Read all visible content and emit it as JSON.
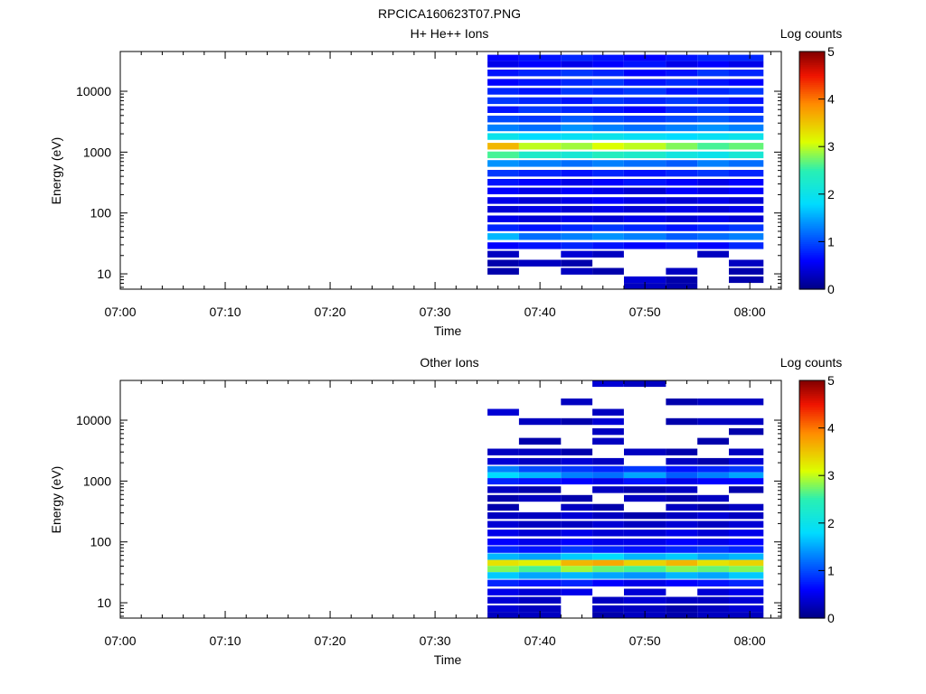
{
  "figure_title": "RPCICA160623T07.PNG",
  "chart_data": [
    {
      "type": "heatmap",
      "title": "H+ He++ Ions",
      "xlabel": "Time",
      "ylabel": "Energy (eV)",
      "colorbar_label": "Log counts",
      "colorbar_ticks": [
        "0",
        "1",
        "2",
        "3",
        "4",
        "5"
      ],
      "colorbar_range": [
        0,
        5
      ],
      "y_scale": "log",
      "y_range": [
        5.6,
        45000
      ],
      "y_ticks": [
        "10",
        "100",
        "1000",
        "10000"
      ],
      "x_ticks": [
        "07:00",
        "07:10",
        "07:20",
        "07:30",
        "07:40",
        "07:50",
        "08:00"
      ],
      "x_range_minutes": [
        0,
        63
      ],
      "time_columns": [
        "07:35",
        "07:38",
        "07:42",
        "07:45",
        "07:48",
        "07:52",
        "07:55",
        "07:58"
      ],
      "bands": [
        {
          "e": 35000,
          "v": [
            0.6,
            0.7,
            0.8,
            0.7,
            0.6,
            0.7,
            0.8,
            0.8
          ]
        },
        {
          "e": 28000,
          "v": [
            0.5,
            0.6,
            0.5,
            0.6,
            0.7,
            0.5,
            0.6,
            0.5
          ]
        },
        {
          "e": 20000,
          "v": [
            0.7,
            0.8,
            0.9,
            0.8,
            0.6,
            0.7,
            0.9,
            0.8
          ]
        },
        {
          "e": 14000,
          "v": [
            0.6,
            0.7,
            0.8,
            0.9,
            0.7,
            0.8,
            0.7,
            0.6
          ]
        },
        {
          "e": 10000,
          "v": [
            0.8,
            0.7,
            0.9,
            0.8,
            0.9,
            0.7,
            0.8,
            0.9
          ]
        },
        {
          "e": 7000,
          "v": [
            0.9,
            0.8,
            0.7,
            0.9,
            0.8,
            0.9,
            0.8,
            0.7
          ]
        },
        {
          "e": 5000,
          "v": [
            0.7,
            0.9,
            0.8,
            0.7,
            0.6,
            0.8,
            0.9,
            0.8
          ]
        },
        {
          "e": 3500,
          "v": [
            1.0,
            0.9,
            1.1,
            1.0,
            0.9,
            1.0,
            1.1,
            1.0
          ]
        },
        {
          "e": 2500,
          "v": [
            1.3,
            1.2,
            1.4,
            1.3,
            1.2,
            1.3,
            1.4,
            1.3
          ]
        },
        {
          "e": 1800,
          "v": [
            2.0,
            1.8,
            1.9,
            2.0,
            1.9,
            1.8,
            1.9,
            2.0
          ]
        },
        {
          "e": 1250,
          "v": [
            3.6,
            3.0,
            2.9,
            3.1,
            3.0,
            2.8,
            2.6,
            2.7
          ]
        },
        {
          "e": 900,
          "v": [
            2.6,
            2.3,
            2.2,
            2.4,
            2.3,
            2.1,
            2.0,
            2.2
          ]
        },
        {
          "e": 650,
          "v": [
            1.4,
            1.3,
            1.2,
            1.3,
            1.2,
            1.1,
            1.3,
            1.2
          ]
        },
        {
          "e": 450,
          "v": [
            0.9,
            0.8,
            0.7,
            0.8,
            0.7,
            0.8,
            0.9,
            0.8
          ]
        },
        {
          "e": 320,
          "v": [
            0.7,
            0.6,
            0.5,
            0.6,
            0.7,
            0.6,
            0.5,
            0.6
          ]
        },
        {
          "e": 230,
          "v": [
            0.6,
            0.5,
            0.6,
            0.5,
            0.4,
            0.6,
            0.5,
            0.6
          ]
        },
        {
          "e": 160,
          "v": [
            0.5,
            0.4,
            0.5,
            0.6,
            0.5,
            0.4,
            0.5,
            0.4
          ]
        },
        {
          "e": 115,
          "v": [
            0.4,
            0.5,
            0.4,
            0.5,
            0.4,
            0.5,
            0.4,
            0.5
          ]
        },
        {
          "e": 80,
          "v": [
            0.5,
            0.4,
            0.5,
            0.4,
            0.5,
            0.4,
            0.5,
            0.4
          ]
        },
        {
          "e": 57,
          "v": [
            0.8,
            0.7,
            0.8,
            0.9,
            0.8,
            0.7,
            0.8,
            0.9
          ]
        },
        {
          "e": 41,
          "v": [
            1.6,
            1.2,
            1.3,
            1.4,
            1.3,
            1.1,
            1.2,
            1.3
          ]
        },
        {
          "e": 29,
          "v": [
            0.6,
            0.7,
            0.8,
            0.7,
            0.6,
            0.7,
            0.6,
            0.8
          ]
        },
        {
          "e": 21,
          "v": [
            0.3,
            null,
            0.4,
            0.3,
            null,
            null,
            0.3,
            null
          ]
        },
        {
          "e": 15,
          "v": [
            0.2,
            0.3,
            0.2,
            null,
            null,
            null,
            null,
            0.3
          ]
        },
        {
          "e": 11,
          "v": [
            0.2,
            null,
            0.3,
            0.2,
            null,
            0.3,
            null,
            0.2
          ]
        },
        {
          "e": 8,
          "v": [
            null,
            null,
            null,
            null,
            0.4,
            0.2,
            null,
            0.2
          ]
        },
        {
          "e": 6.3,
          "v": [
            null,
            null,
            null,
            null,
            0.3,
            0.2,
            null,
            null
          ]
        }
      ]
    },
    {
      "type": "heatmap",
      "title": "Other Ions",
      "xlabel": "Time",
      "ylabel": "Energy (eV)",
      "colorbar_label": "Log counts",
      "colorbar_ticks": [
        "0",
        "1",
        "2",
        "3",
        "4",
        "5"
      ],
      "colorbar_range": [
        0,
        5
      ],
      "y_scale": "log",
      "y_range": [
        5.6,
        45000
      ],
      "y_ticks": [
        "10",
        "100",
        "1000",
        "10000"
      ],
      "x_ticks": [
        "07:00",
        "07:10",
        "07:20",
        "07:30",
        "07:40",
        "07:50",
        "08:00"
      ],
      "x_range_minutes": [
        0,
        63
      ],
      "time_columns": [
        "07:35",
        "07:38",
        "07:42",
        "07:45",
        "07:48",
        "07:52",
        "07:55",
        "07:58"
      ],
      "bands": [
        {
          "e": 40000,
          "v": [
            null,
            null,
            null,
            0.4,
            0.3,
            null,
            null,
            null
          ]
        },
        {
          "e": 20000,
          "v": [
            null,
            null,
            0.3,
            null,
            null,
            0.2,
            0.3,
            0.3
          ]
        },
        {
          "e": 13500,
          "v": [
            0.4,
            null,
            null,
            0.3,
            null,
            null,
            null,
            null
          ]
        },
        {
          "e": 9500,
          "v": [
            null,
            0.3,
            0.2,
            0.4,
            null,
            0.2,
            0.3,
            0.3
          ]
        },
        {
          "e": 6500,
          "v": [
            null,
            null,
            null,
            0.3,
            null,
            null,
            null,
            0.2
          ]
        },
        {
          "e": 4500,
          "v": [
            null,
            0.2,
            null,
            0.3,
            null,
            null,
            0.2,
            null
          ]
        },
        {
          "e": 3000,
          "v": [
            0.3,
            0.3,
            0.2,
            null,
            0.3,
            0.2,
            null,
            0.3
          ]
        },
        {
          "e": 2100,
          "v": [
            0.4,
            0.3,
            0.4,
            0.3,
            null,
            0.3,
            0.2,
            0.4
          ]
        },
        {
          "e": 1550,
          "v": [
            1.3,
            1.0,
            0.9,
            0.8,
            0.9,
            0.7,
            0.8,
            0.9
          ]
        },
        {
          "e": 1250,
          "v": [
            1.8,
            1.6,
            1.3,
            1.2,
            1.5,
            1.1,
            1.3,
            1.5
          ]
        },
        {
          "e": 1000,
          "v": [
            0.8,
            0.7,
            0.6,
            0.5,
            0.7,
            0.5,
            0.6,
            0.6
          ]
        },
        {
          "e": 720,
          "v": [
            0.3,
            0.2,
            null,
            0.3,
            0.2,
            0.3,
            null,
            0.2
          ]
        },
        {
          "e": 520,
          "v": [
            0.2,
            0.3,
            0.2,
            null,
            0.3,
            0.2,
            0.3,
            null
          ]
        },
        {
          "e": 370,
          "v": [
            0.2,
            null,
            0.3,
            0.2,
            null,
            0.3,
            0.2,
            0.3
          ]
        },
        {
          "e": 270,
          "v": [
            0.3,
            0.3,
            0.4,
            0.3,
            0.2,
            0.3,
            0.4,
            0.3
          ]
        },
        {
          "e": 195,
          "v": [
            0.4,
            0.3,
            0.3,
            0.4,
            0.3,
            0.4,
            0.3,
            0.4
          ]
        },
        {
          "e": 140,
          "v": [
            0.5,
            0.4,
            0.5,
            0.4,
            0.4,
            0.5,
            0.4,
            0.5
          ]
        },
        {
          "e": 100,
          "v": [
            0.6,
            0.5,
            0.6,
            0.5,
            0.5,
            0.6,
            0.5,
            0.6
          ]
        },
        {
          "e": 75,
          "v": [
            0.8,
            0.7,
            0.9,
            0.8,
            0.7,
            0.8,
            0.9,
            0.8
          ]
        },
        {
          "e": 57,
          "v": [
            1.6,
            1.5,
            1.7,
            1.8,
            1.6,
            1.7,
            1.5,
            1.6
          ]
        },
        {
          "e": 45,
          "v": [
            3.3,
            3.2,
            3.6,
            3.7,
            3.4,
            3.6,
            3.3,
            3.4
          ]
        },
        {
          "e": 36,
          "v": [
            2.8,
            2.6,
            2.9,
            2.7,
            2.6,
            2.8,
            2.7,
            2.8
          ]
        },
        {
          "e": 28,
          "v": [
            1.7,
            1.5,
            1.6,
            1.5,
            1.4,
            1.6,
            1.5,
            1.7
          ]
        },
        {
          "e": 21,
          "v": [
            0.8,
            0.7,
            0.8,
            0.6,
            0.5,
            0.6,
            0.7,
            0.8
          ]
        },
        {
          "e": 15,
          "v": [
            0.5,
            0.4,
            0.5,
            null,
            0.4,
            null,
            0.4,
            0.5
          ]
        },
        {
          "e": 11,
          "v": [
            0.4,
            0.3,
            null,
            0.3,
            0.4,
            0.3,
            0.3,
            0.4
          ]
        },
        {
          "e": 8,
          "v": [
            0.4,
            0.3,
            null,
            0.3,
            0.3,
            0.2,
            0.3,
            0.4
          ]
        },
        {
          "e": 6.3,
          "v": [
            0.3,
            0.3,
            null,
            0.2,
            0.3,
            0.2,
            0.3,
            0.3
          ]
        }
      ]
    }
  ]
}
